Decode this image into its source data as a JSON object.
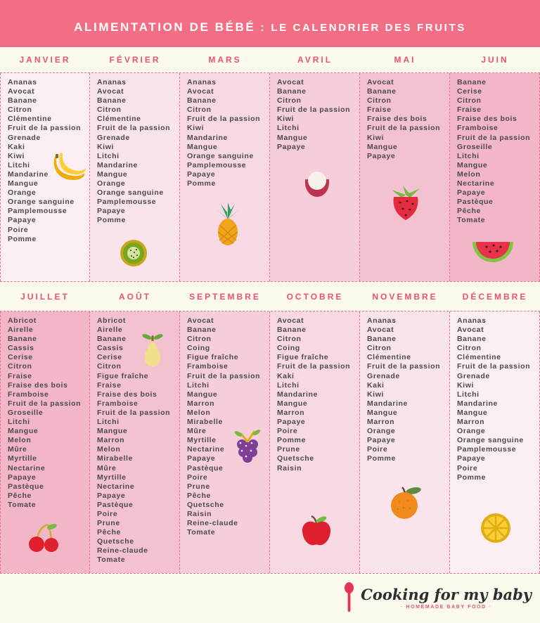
{
  "title": {
    "part1": "ALIMENTATION DE BÉBÉ",
    "separator": " : ",
    "part2": "LE CALENDRIER DES FRUITS"
  },
  "colors": {
    "banner": "#F26E84",
    "month_label": "#E8536F",
    "dashed_border": "#EE6E8C",
    "background": "#FCFAED",
    "list_text": "#4A4A4A",
    "shades": [
      "#FCEFF4",
      "#FAE4EC",
      "#F8D9E3",
      "#F6CDDA",
      "#F4C1D0",
      "#F2B6C7"
    ]
  },
  "months": [
    {
      "name": "JANVIER",
      "icon": "banana-icon",
      "fruits": [
        "Ananas",
        "Avocat",
        "Banane",
        "Citron",
        "Clémentine",
        "Fruit de la passion",
        "Grenade",
        "Kaki",
        "Kiwi",
        "Litchi",
        "Mandarine",
        "Mangue",
        "Orange",
        "Orange sanguine",
        "Pamplemousse",
        "Papaye",
        "Poire",
        "Pomme"
      ]
    },
    {
      "name": "FÉVRIER",
      "icon": "kiwi-icon",
      "fruits": [
        "Ananas",
        "Avocat",
        "Banane",
        "Citron",
        "Clémentine",
        "Fruit de la passion",
        "Grenade",
        "Kiwi",
        "Litchi",
        "Mandarine",
        "Mangue",
        "Orange",
        "Orange sanguine",
        "Pamplemousse",
        "Papaye",
        "Pomme"
      ]
    },
    {
      "name": "MARS",
      "icon": "pineapple-icon",
      "fruits": [
        "Ananas",
        "Avocat",
        "Banane",
        "Citron",
        "Fruit de la passion",
        "Kiwi",
        "Mandarine",
        "Mangue",
        "Orange sanguine",
        "Pamplemousse",
        "Papaye",
        "Pomme"
      ]
    },
    {
      "name": "AVRIL",
      "icon": "lychee-icon",
      "fruits": [
        "Avocat",
        "Banane",
        "Citron",
        "Fruit de la passion",
        "Kiwi",
        "Litchi",
        "Mangue",
        "Papaye"
      ]
    },
    {
      "name": "MAI",
      "icon": "strawberry-icon",
      "fruits": [
        "Avocat",
        "Banane",
        "Citron",
        "Fraise",
        "Fraise des bois",
        "Fruit de la passion",
        "Kiwi",
        "Mangue",
        "Papaye"
      ]
    },
    {
      "name": "JUIN",
      "icon": "watermelon-icon",
      "fruits": [
        "Banane",
        "Cerise",
        "Citron",
        "Fraise",
        "Fraise des bois",
        "Framboise",
        "Fruit de la passion",
        "Groseille",
        "Litchi",
        "Mangue",
        "Melon",
        "Nectarine",
        "Papaye",
        "Pastèque",
        "Pêche",
        "Tomate"
      ]
    },
    {
      "name": "JUILLET",
      "icon": "cherry-icon",
      "fruits": [
        "Abricot",
        "Airelle",
        "Banane",
        "Cassis",
        "Cerise",
        "Citron",
        "Fraise",
        "Fraise des bois",
        "Framboise",
        "Fruit de la passion",
        "Groseille",
        "Litchi",
        "Mangue",
        "Melon",
        "Mûre",
        "Myrtille",
        "Nectarine",
        "Papaye",
        "Pastèque",
        "Pêche",
        "Tomate"
      ]
    },
    {
      "name": "AOÛT",
      "icon": "pear-icon",
      "fruits": [
        "Abricot",
        "Airelle",
        "Banane",
        "Cassis",
        "Cerise",
        "Citron",
        "Figue fraîche",
        "Fraise",
        "Fraise des bois",
        "Framboise",
        "Fruit de la passion",
        "Litchi",
        "Mangue",
        "Marron",
        "Melon",
        "Mirabelle",
        "Mûre",
        "Myrtille",
        "Nectarine",
        "Papaye",
        "Pastèque",
        "Poire",
        "Prune",
        "Pêche",
        "Quetsche",
        "Reine-claude",
        "Tomate"
      ]
    },
    {
      "name": "SEPTEMBRE",
      "icon": "grapes-icon",
      "fruits": [
        "Avocat",
        "Banane",
        "Citron",
        "Coing",
        "Figue fraîche",
        "Framboise",
        "Fruit de la passion",
        "Litchi",
        "Mangue",
        "Marron",
        "Melon",
        "Mirabelle",
        "Mûre",
        "Myrtille",
        "Nectarine",
        "Papaye",
        "Pastèque",
        "Poire",
        "Prune",
        "Pêche",
        "Quetsche",
        "Raisin",
        "Reine-claude",
        "Tomate"
      ]
    },
    {
      "name": "OCTOBRE",
      "icon": "apple-icon",
      "fruits": [
        "Avocat",
        "Banane",
        "Citron",
        "Coing",
        "Figue fraîche",
        "Fruit de la passion",
        "Kaki",
        "Litchi",
        "Mandarine",
        "Mangue",
        "Marron",
        "Papaye",
        "Poire",
        "Pomme",
        "Prune",
        "Quetsche",
        "Raisin"
      ]
    },
    {
      "name": "NOVEMBRE",
      "icon": "orange-icon",
      "fruits": [
        "Ananas",
        "Avocat",
        "Banane",
        "Citron",
        "Clémentine",
        "Fruit de la passion",
        "Grenade",
        "Kaki",
        "Kiwi",
        "Mandarine",
        "Mangue",
        "Marron",
        "Orange",
        "Papaye",
        "Poire",
        "Pomme"
      ]
    },
    {
      "name": "DÉCEMBRE",
      "icon": "lemon-icon",
      "fruits": [
        "Ananas",
        "Avocat",
        "Banane",
        "Citron",
        "Clémentine",
        "Fruit de la passion",
        "Grenade",
        "Kiwi",
        "Litchi",
        "Mandarine",
        "Mangue",
        "Marron",
        "Orange",
        "Orange sanguine",
        "Pamplemousse",
        "Papaye",
        "Poire",
        "Pomme"
      ]
    }
  ],
  "footer": {
    "logo_text": "Cooking for my baby",
    "logo_subtitle": "· HOMEMADE BABY FOOD ·",
    "spoon_icon": "spoon-icon"
  }
}
